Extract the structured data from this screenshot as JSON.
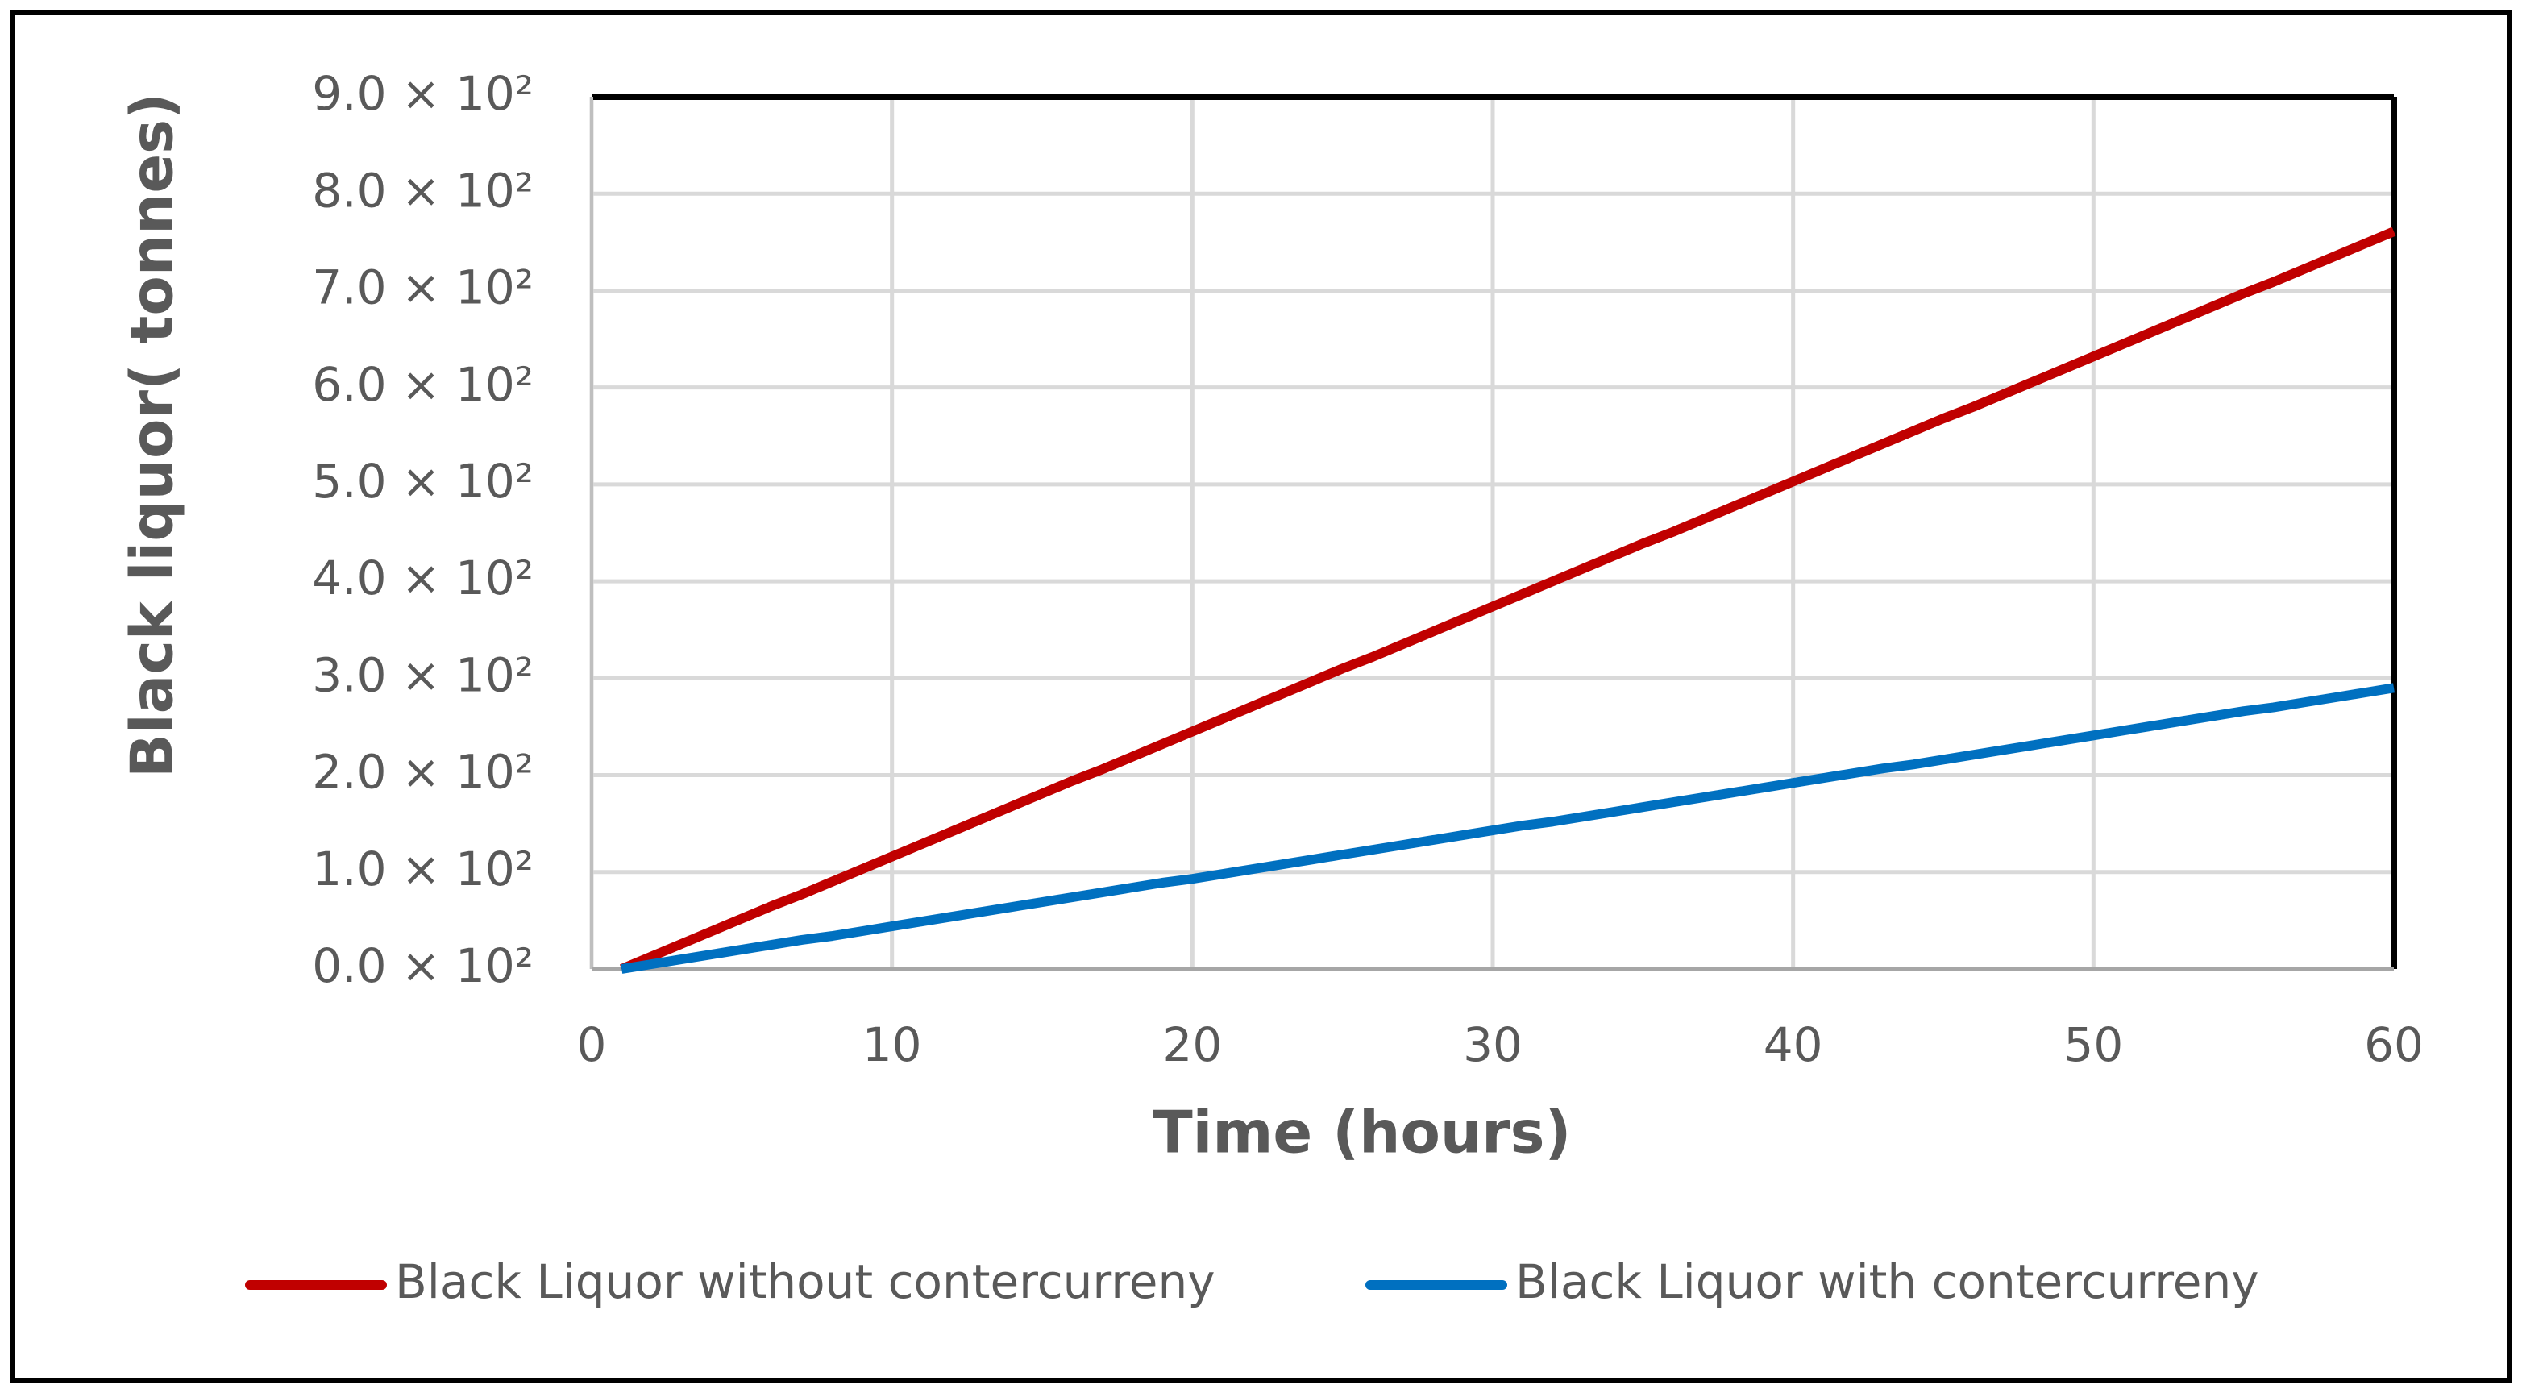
{
  "chart_data": {
    "type": "line",
    "x_label": "Time (hours)",
    "y_label": "Black liquor( tonnes)",
    "x": [
      1,
      2,
      3,
      4,
      5,
      6,
      7,
      8,
      9,
      10,
      11,
      12,
      13,
      14,
      15,
      16,
      17,
      18,
      19,
      20,
      21,
      22,
      23,
      24,
      25,
      26,
      27,
      28,
      29,
      30,
      31,
      32,
      33,
      34,
      35,
      36,
      37,
      38,
      39,
      40,
      41,
      42,
      43,
      44,
      45,
      46,
      47,
      48,
      49,
      50,
      51,
      52,
      53,
      54,
      55,
      56,
      57,
      58,
      59,
      60
    ],
    "series": [
      {
        "name": "Black Liquor without contercurreny",
        "color": "#c00000",
        "values": [
          0,
          13,
          26,
          39,
          52,
          65,
          77,
          90,
          103,
          116,
          129,
          142,
          155,
          168,
          181,
          194,
          206,
          219,
          232,
          245,
          258,
          271,
          284,
          297,
          310,
          322,
          335,
          348,
          361,
          374,
          387,
          400,
          413,
          426,
          439,
          451,
          464,
          477,
          490,
          503,
          516,
          529,
          542,
          555,
          568,
          580,
          593,
          606,
          619,
          632,
          645,
          658,
          671,
          684,
          697,
          709,
          722,
          735,
          748,
          761
        ]
      },
      {
        "name": "Black Liquor with contercurreny",
        "color": "#0070c0",
        "values": [
          0,
          5,
          10,
          15,
          20,
          25,
          30,
          34,
          39,
          44,
          49,
          54,
          59,
          64,
          69,
          74,
          79,
          84,
          89,
          93,
          98,
          103,
          108,
          113,
          118,
          123,
          128,
          133,
          138,
          143,
          148,
          152,
          157,
          162,
          167,
          172,
          177,
          182,
          187,
          192,
          197,
          202,
          207,
          211,
          216,
          221,
          226,
          231,
          236,
          241,
          246,
          251,
          256,
          261,
          266,
          270,
          275,
          280,
          285,
          290
        ]
      }
    ],
    "xlim": [
      0,
      60
    ],
    "xticks": [
      0,
      10,
      20,
      30,
      40,
      50,
      60
    ],
    "ylim": [
      0,
      900
    ],
    "yticks": [
      {
        "value": 0,
        "label": "0.0 × 10²"
      },
      {
        "value": 100,
        "label": "1.0 × 10²"
      },
      {
        "value": 200,
        "label": "2.0 × 10²"
      },
      {
        "value": 300,
        "label": "3.0 × 10²"
      },
      {
        "value": 400,
        "label": "4.0 × 10²"
      },
      {
        "value": 500,
        "label": "5.0 × 10²"
      },
      {
        "value": 600,
        "label": "6.0 × 10²"
      },
      {
        "value": 700,
        "label": "7.0 × 10²"
      },
      {
        "value": 800,
        "label": "8.0 × 10²"
      },
      {
        "value": 900,
        "label": "9.0 × 10²"
      }
    ],
    "grid": true,
    "legend": "bottom"
  }
}
